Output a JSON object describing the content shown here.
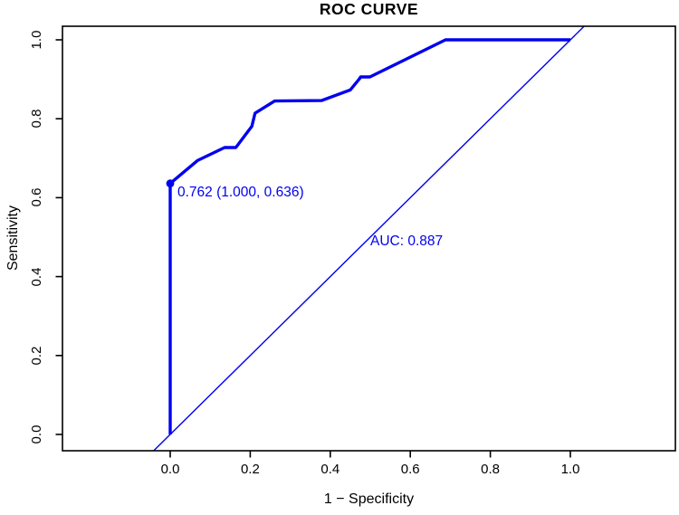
{
  "figure": {
    "background": "#ffffff",
    "axis_color": "#000000",
    "accent_blue": "#0000f0"
  },
  "chart_data": {
    "type": "line",
    "title": "ROC CURVE",
    "xlabel": "1 − Specificity",
    "ylabel": "Sensitivity",
    "xlim": [
      0,
      1
    ],
    "ylim": [
      0,
      1
    ],
    "grid": false,
    "legend": "none",
    "x_ticks": [
      0.0,
      0.2,
      0.4,
      0.6,
      0.8,
      1.0
    ],
    "x_tick_labels": [
      "0.0",
      "0.2",
      "0.4",
      "0.6",
      "0.8",
      "1.0"
    ],
    "y_ticks": [
      0.0,
      0.2,
      0.4,
      0.6,
      0.8,
      1.0
    ],
    "y_tick_labels": [
      "0.0",
      "0.2",
      "0.4",
      "0.6",
      "0.8",
      "1.0"
    ],
    "series": [
      {
        "name": "roc-curve",
        "color": "#0000f0",
        "width": 3.4,
        "points": [
          [
            0.0,
            0.0
          ],
          [
            0.0,
            0.636
          ],
          [
            0.068,
            0.694
          ],
          [
            0.136,
            0.727
          ],
          [
            0.164,
            0.727
          ],
          [
            0.204,
            0.781
          ],
          [
            0.212,
            0.814
          ],
          [
            0.261,
            0.845
          ],
          [
            0.378,
            0.846
          ],
          [
            0.45,
            0.873
          ],
          [
            0.472,
            0.9
          ],
          [
            0.476,
            0.906
          ],
          [
            0.499,
            0.906
          ],
          [
            0.688,
            1.0
          ],
          [
            1.0,
            1.0
          ]
        ]
      },
      {
        "name": "chance-diagonal",
        "color": "#0000f0",
        "width": 1.4,
        "points": [
          [
            -0.05,
            -0.05
          ],
          [
            1.05,
            1.05
          ]
        ]
      }
    ],
    "best_threshold_marker": {
      "x": 0.0,
      "y": 0.636,
      "label": "0.762 (1.000, 0.636)"
    },
    "auc_annotation": "AUC: 0.887"
  }
}
